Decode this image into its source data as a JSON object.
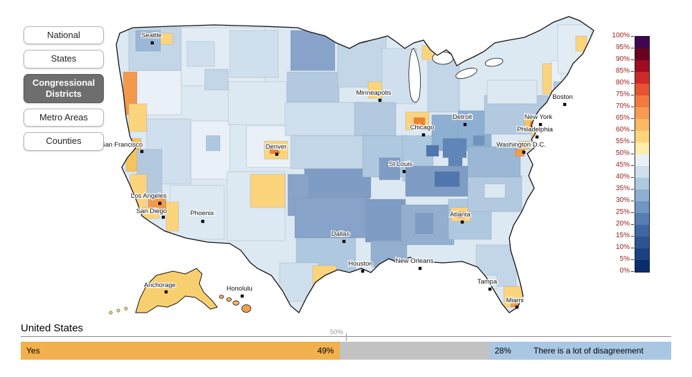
{
  "sidebar": {
    "buttons": [
      {
        "label": "National",
        "selected": false
      },
      {
        "label": "States",
        "selected": false
      },
      {
        "label": "Congressional Districts",
        "selected": true
      },
      {
        "label": "Metro Areas",
        "selected": false
      },
      {
        "label": "Counties",
        "selected": false
      }
    ]
  },
  "legend": {
    "ticks": [
      "100%",
      "95%",
      "90%",
      "85%",
      "80%",
      "75%",
      "70%",
      "65%",
      "60%",
      "55%",
      "50%",
      "45%",
      "40%",
      "35%",
      "30%",
      "25%",
      "20%",
      "15%",
      "10%",
      "5%",
      "0%"
    ],
    "colors": [
      "#3f0751",
      "#6a011f",
      "#a00d22",
      "#cd2a28",
      "#e65330",
      "#f27a40",
      "#f89a53",
      "#fbb964",
      "#fcd47b",
      "#feeca8",
      "#e9f0f7",
      "#cfdfed",
      "#aec8df",
      "#8dafd1",
      "#7096c3",
      "#557eb3",
      "#3f67a4",
      "#2b5493",
      "#1a4183",
      "#0a2d6e"
    ]
  },
  "map": {
    "cities": [
      "Seattle",
      "San Francisco",
      "Los Angeles",
      "San Diego",
      "Phoenix",
      "Denver",
      "Dallas",
      "Houston",
      "Minneapolis",
      "Chicago",
      "St Louis",
      "Detroit",
      "New Orleans",
      "Atlanta",
      "Tampa",
      "Miami",
      "Boston",
      "New York",
      "Philadelphia",
      "Washington D.C.",
      "Anchorage",
      "Honolulu"
    ]
  },
  "footer": {
    "title": "United States",
    "midpoint_label": "50%",
    "yes_label": "Yes",
    "yes_value": "49%",
    "yes_pct": 49,
    "disagree_value": "28%",
    "disagree_label": "There is a lot of disagreement",
    "disagree_pct": 28
  }
}
